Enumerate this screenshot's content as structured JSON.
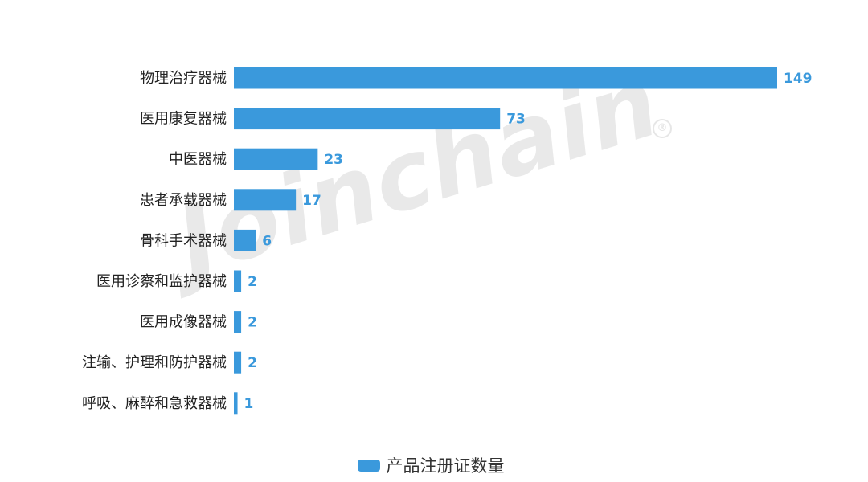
{
  "chart_data": {
    "type": "bar",
    "orientation": "horizontal",
    "categories": [
      "物理治疗器械",
      "医用康复器械",
      "中医器械",
      "患者承载器械",
      "骨科手术器械",
      "医用诊察和监护器械",
      "医用成像器械",
      "注输、护理和防护器械",
      "呼吸、麻醉和急救器械"
    ],
    "series": [
      {
        "name": "产品注册证数量",
        "values": [
          149,
          73,
          23,
          17,
          6,
          2,
          2,
          2,
          1
        ]
      }
    ],
    "xlim": [
      0,
      149
    ],
    "grid": false,
    "legend_position": "bottom-center",
    "data_labels": true
  },
  "colors": {
    "bar": "#3a99dc",
    "value_label": "#3a99dc",
    "category_label": "#222222",
    "watermark": "#e9e9e9"
  },
  "watermark": {
    "text": "Joinchain",
    "mark": "®"
  }
}
